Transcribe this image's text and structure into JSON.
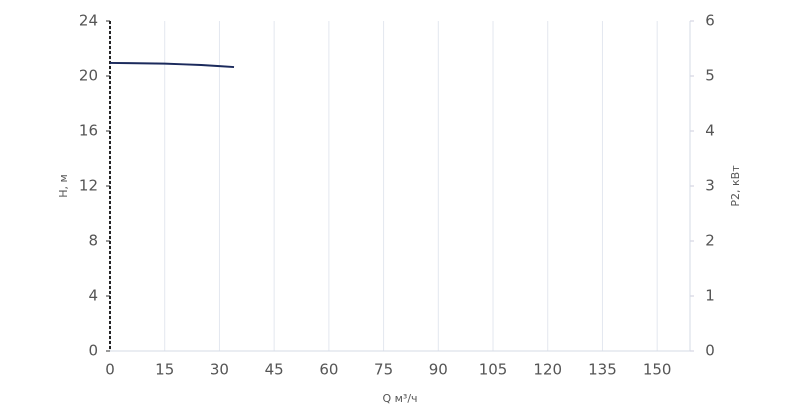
{
  "chart_data": {
    "type": "line",
    "x_label": "Q м³/ч",
    "y_label": "H, м",
    "y2_label": "P2, кВт",
    "x": [
      0,
      5,
      10,
      15,
      20,
      25,
      30,
      34
    ],
    "series": [
      {
        "name": "H",
        "color": "#1b2a5c",
        "values": [
          20.95,
          20.94,
          20.92,
          20.9,
          20.85,
          20.8,
          20.72,
          20.65
        ]
      }
    ],
    "xlim": [
      0,
      159
    ],
    "xticks": [
      0,
      15,
      30,
      45,
      60,
      75,
      90,
      105,
      120,
      135,
      150
    ],
    "ylim": [
      0,
      24
    ],
    "yticks": [
      0,
      4,
      8,
      12,
      16,
      20,
      24
    ],
    "y2lim": [
      0,
      6
    ],
    "y2ticks": [
      0,
      1,
      2,
      3,
      4,
      5,
      6
    ],
    "grid": true
  }
}
